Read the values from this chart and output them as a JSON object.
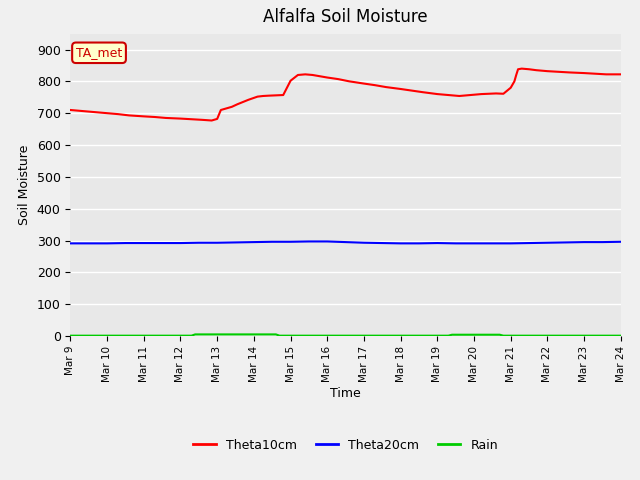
{
  "title": "Alfalfa Soil Moisture",
  "xlabel": "Time",
  "ylabel": "Soil Moisture",
  "ylim": [
    0,
    950
  ],
  "yticks": [
    0,
    100,
    200,
    300,
    400,
    500,
    600,
    700,
    800,
    900
  ],
  "background_color": "#f0f0f0",
  "plot_bg_color": "#e8e8e8",
  "annotation_text": "TA_met",
  "annotation_bg": "#ffffcc",
  "annotation_border": "#cc0000",
  "legend_labels": [
    "Theta10cm",
    "Theta20cm",
    "Rain"
  ],
  "legend_colors": [
    "#ff0000",
    "#0000ff",
    "#00cc00"
  ],
  "theta10_x": [
    9.0,
    9.2,
    9.5,
    9.8,
    10.0,
    10.3,
    10.6,
    11.0,
    11.3,
    11.6,
    12.0,
    12.3,
    12.6,
    12.85,
    13.0,
    13.1,
    13.25,
    13.4,
    13.55,
    13.7,
    13.85,
    14.0,
    14.1,
    14.25,
    14.4,
    14.6,
    14.8,
    15.0,
    15.2,
    15.4,
    15.6,
    15.8,
    16.0,
    16.3,
    16.6,
    17.0,
    17.3,
    17.6,
    18.0,
    18.3,
    18.6,
    19.0,
    19.3,
    19.6,
    20.0,
    20.2,
    20.4,
    20.6,
    20.8,
    21.0,
    21.1,
    21.15,
    21.2,
    21.3,
    21.5,
    21.7,
    22.0,
    22.3,
    22.6,
    23.0,
    23.3,
    23.6,
    24.0
  ],
  "theta10_y": [
    710,
    708,
    705,
    702,
    700,
    697,
    693,
    690,
    688,
    685,
    683,
    681,
    679,
    677,
    682,
    710,
    715,
    720,
    728,
    735,
    742,
    748,
    752,
    754,
    755,
    756,
    757,
    802,
    820,
    822,
    820,
    816,
    812,
    807,
    800,
    793,
    788,
    782,
    776,
    771,
    766,
    760,
    757,
    754,
    758,
    760,
    761,
    762,
    761,
    780,
    800,
    820,
    838,
    840,
    838,
    835,
    832,
    830,
    828,
    826,
    824,
    822,
    822
  ],
  "theta20_x": [
    9.0,
    9.5,
    10.0,
    10.5,
    11.0,
    11.5,
    12.0,
    12.5,
    13.0,
    13.5,
    14.0,
    14.5,
    15.0,
    15.5,
    16.0,
    16.5,
    17.0,
    17.5,
    18.0,
    18.5,
    19.0,
    19.5,
    20.0,
    20.5,
    21.0,
    21.5,
    22.0,
    22.5,
    23.0,
    23.5,
    24.0
  ],
  "theta20_y": [
    291,
    291,
    291,
    292,
    292,
    292,
    292,
    293,
    293,
    294,
    295,
    296,
    296,
    297,
    297,
    295,
    293,
    292,
    291,
    291,
    292,
    291,
    291,
    291,
    291,
    292,
    293,
    294,
    295,
    295,
    296
  ],
  "rain_x": [
    9.0,
    12.3,
    12.4,
    14.6,
    14.7,
    19.3,
    19.4,
    20.7,
    20.8,
    24.0
  ],
  "rain_y": [
    1,
    1,
    5,
    5,
    1,
    1,
    4,
    4,
    1,
    1
  ],
  "xmin": 9,
  "xmax": 24,
  "xtick_positions": [
    9,
    10,
    11,
    12,
    13,
    14,
    15,
    16,
    17,
    18,
    19,
    20,
    21,
    22,
    23,
    24
  ],
  "xtick_labels": [
    "Mar 9",
    "Mar 10",
    "Mar 11",
    "Mar 12",
    "Mar 13",
    "Mar 14",
    "Mar 15",
    "Mar 16",
    "Mar 17",
    "Mar 18",
    "Mar 19",
    "Mar 20",
    "Mar 21",
    "Mar 22",
    "Mar 23",
    "Mar 24"
  ]
}
